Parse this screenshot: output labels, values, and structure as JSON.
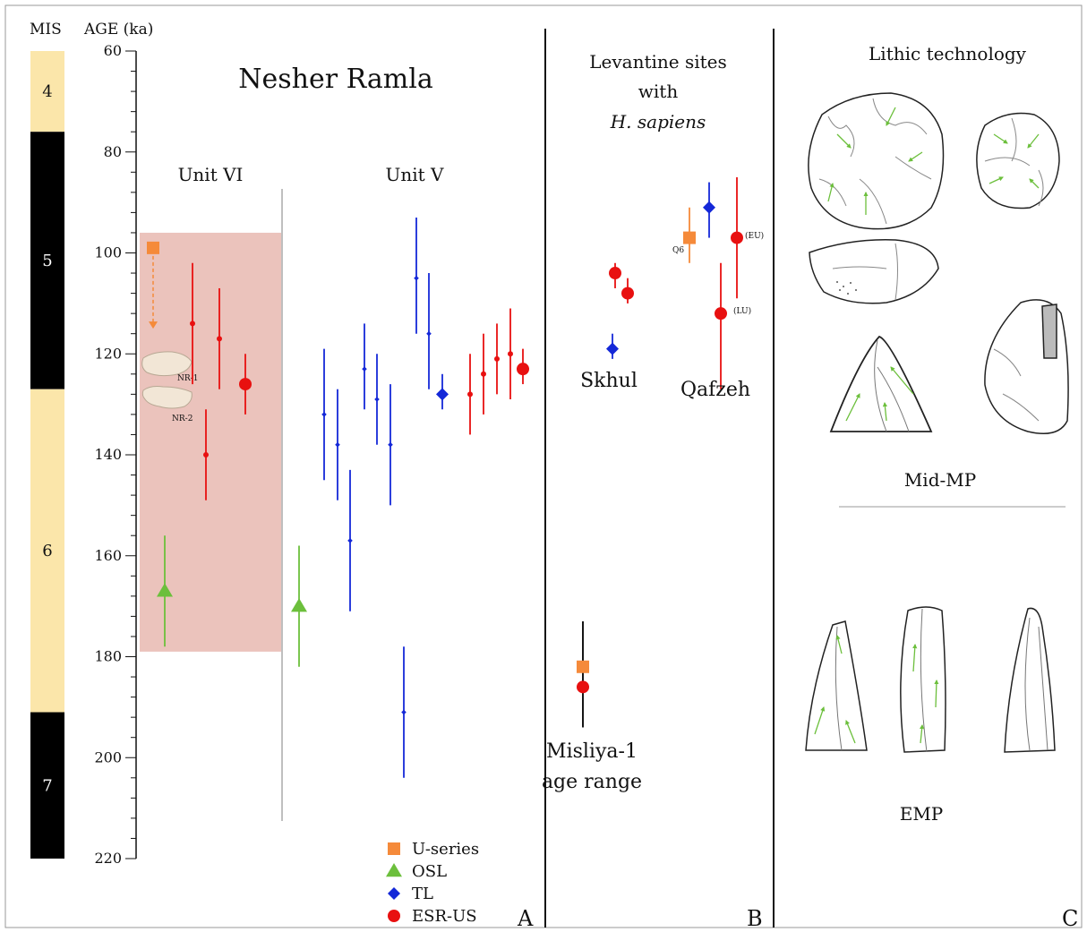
{
  "labels": {
    "mis_header": "MIS",
    "age_header": "AGE (ka)",
    "panel_a_title": "Nesher Ramla",
    "unit_vi": "Unit VI",
    "unit_v": "Unit V",
    "nr1": "NR-1",
    "nr2": "NR-2",
    "panel_b_line1": "Levantine sites",
    "panel_b_line2": "with",
    "panel_b_line3": "H. sapiens",
    "skhul": "Skhul",
    "qafzeh": "Qafzeh",
    "q6": "Q6",
    "eu": "(EU)",
    "lu": "(LU)",
    "misliya_line1": "Misliya-1",
    "misliya_line2": "age range",
    "panel_c_title": "Lithic technology",
    "mid_mp": "Mid-MP",
    "emp": "EMP",
    "panel_a_letter": "A",
    "panel_b_letter": "B",
    "panel_c_letter": "C"
  },
  "colors": {
    "useries": "#f58a3a",
    "osl": "#6cbf3c",
    "tl": "#1428d8",
    "esr": "#e81010",
    "highlight": "#e8b8b0",
    "mis_cold": "#000000",
    "mis_warm": "#fbe6aa"
  },
  "chart_data": {
    "type": "scatter",
    "y_axis": {
      "label": "AGE (ka)",
      "range": [
        60,
        220
      ],
      "ticks": [
        60,
        80,
        100,
        120,
        140,
        160,
        180,
        200,
        220
      ],
      "inverted": true
    },
    "mis_stages": [
      {
        "label": "4",
        "from": 60,
        "to": 76,
        "kind": "warm"
      },
      {
        "label": "5",
        "from": 76,
        "to": 127,
        "kind": "cold"
      },
      {
        "label": "6",
        "from": 127,
        "to": 191,
        "kind": "warm"
      },
      {
        "label": "7",
        "from": 191,
        "to": 220,
        "kind": "cold"
      }
    ],
    "unit_vi_highlight": [
      96,
      179
    ],
    "legend": [
      {
        "key": "useries",
        "label": "U-series",
        "shape": "square"
      },
      {
        "key": "osl",
        "label": "OSL",
        "shape": "triangle"
      },
      {
        "key": "tl",
        "label": "TL",
        "shape": "diamond"
      },
      {
        "key": "esr",
        "label": "ESR-US",
        "shape": "circle"
      }
    ],
    "panel_a": [
      {
        "method": "useries",
        "age": 99,
        "size": "large",
        "arrow_to": 115
      },
      {
        "method": "esr",
        "age": 114,
        "low": 102,
        "high": 126,
        "size": "small"
      },
      {
        "method": "esr",
        "age": 117,
        "low": 107,
        "high": 127,
        "size": "small"
      },
      {
        "method": "esr",
        "age": 140,
        "low": 131,
        "high": 149,
        "size": "small"
      },
      {
        "method": "esr",
        "age": 126,
        "low": 120,
        "high": 132,
        "size": "large"
      },
      {
        "method": "osl",
        "age": 167,
        "low": 156,
        "high": 178,
        "size": "large"
      },
      {
        "method": "osl",
        "age": 170,
        "low": 158,
        "high": 182,
        "size": "large"
      },
      {
        "method": "tl",
        "age": 132,
        "low": 119,
        "high": 145,
        "size": "small"
      },
      {
        "method": "tl",
        "age": 138,
        "low": 127,
        "high": 149,
        "size": "small"
      },
      {
        "method": "tl",
        "age": 157,
        "low": 143,
        "high": 171,
        "size": "small"
      },
      {
        "method": "tl",
        "age": 123,
        "low": 114,
        "high": 131,
        "size": "small"
      },
      {
        "method": "tl",
        "age": 129,
        "low": 120,
        "high": 138,
        "size": "small"
      },
      {
        "method": "tl",
        "age": 138,
        "low": 126,
        "high": 150,
        "size": "small"
      },
      {
        "method": "tl",
        "age": 191,
        "low": 178,
        "high": 204,
        "size": "small"
      },
      {
        "method": "tl",
        "age": 105,
        "low": 93,
        "high": 116,
        "size": "small"
      },
      {
        "method": "tl",
        "age": 116,
        "low": 104,
        "high": 127,
        "size": "small"
      },
      {
        "method": "tl",
        "age": 128,
        "low": 124,
        "high": 131,
        "size": "large"
      },
      {
        "method": "esr",
        "age": 128,
        "low": 120,
        "high": 136,
        "size": "small"
      },
      {
        "method": "esr",
        "age": 124,
        "low": 116,
        "high": 132,
        "size": "small"
      },
      {
        "method": "esr",
        "age": 121,
        "low": 114,
        "high": 128,
        "size": "small"
      },
      {
        "method": "esr",
        "age": 120,
        "low": 111,
        "high": 129,
        "size": "small"
      },
      {
        "method": "esr",
        "age": 123,
        "low": 119,
        "high": 126,
        "size": "large"
      }
    ],
    "panel_b": [
      {
        "site": "Skhul",
        "method": "esr",
        "age": 104,
        "low": 102,
        "high": 107,
        "size": "large"
      },
      {
        "site": "Skhul",
        "method": "esr",
        "age": 108,
        "low": 105,
        "high": 110,
        "size": "large"
      },
      {
        "site": "Skhul",
        "method": "tl",
        "age": 119,
        "low": 116,
        "high": 121,
        "size": "large"
      },
      {
        "site": "Qafzeh",
        "method": "useries",
        "age": 97,
        "low": 91,
        "high": 102,
        "size": "large",
        "tag": "Q6"
      },
      {
        "site": "Qafzeh",
        "method": "tl",
        "age": 91,
        "low": 86,
        "high": 97,
        "size": "large"
      },
      {
        "site": "Qafzeh",
        "method": "esr",
        "age": 97,
        "low": 85,
        "high": 109,
        "size": "large",
        "tag": "(EU)"
      },
      {
        "site": "Qafzeh",
        "method": "esr",
        "age": 112,
        "low": 102,
        "high": 127,
        "size": "large",
        "tag": "(LU)"
      },
      {
        "site": "Misliya-1",
        "method": "useries",
        "age": 182,
        "low": 173,
        "high": 194,
        "size": "large"
      },
      {
        "site": "Misliya-1",
        "method": "esr",
        "age": 186,
        "low": 173,
        "high": 194,
        "size": "large"
      }
    ]
  }
}
